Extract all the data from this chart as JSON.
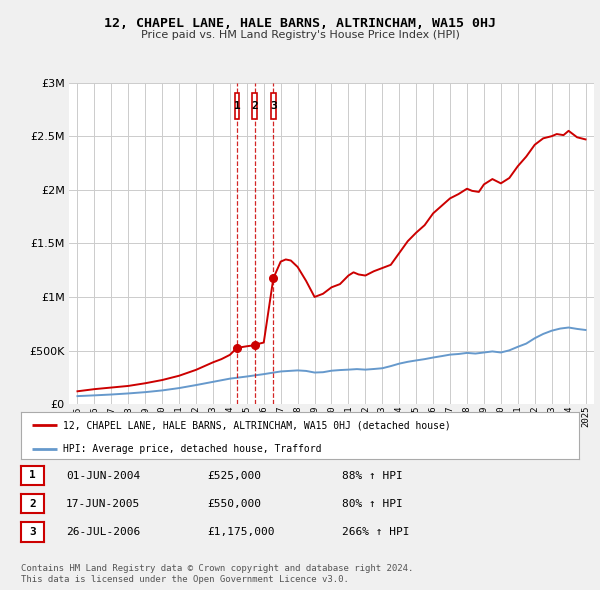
{
  "title": "12, CHAPEL LANE, HALE BARNS, ALTRINCHAM, WA15 0HJ",
  "subtitle": "Price paid vs. HM Land Registry's House Price Index (HPI)",
  "background_color": "#f0f0f0",
  "plot_bg_color": "#ffffff",
  "grid_color": "#cccccc",
  "ylim": [
    0,
    3000000
  ],
  "yticks": [
    0,
    500000,
    1000000,
    1500000,
    2000000,
    2500000,
    3000000
  ],
  "ytick_labels": [
    "£0",
    "£500K",
    "£1M",
    "£1.5M",
    "£2M",
    "£2.5M",
    "£3M"
  ],
  "xlim_start": 1994.5,
  "xlim_end": 2025.5,
  "xtick_years": [
    1995,
    1996,
    1997,
    1998,
    1999,
    2000,
    2001,
    2002,
    2003,
    2004,
    2005,
    2006,
    2007,
    2008,
    2009,
    2010,
    2011,
    2012,
    2013,
    2014,
    2015,
    2016,
    2017,
    2018,
    2019,
    2020,
    2021,
    2022,
    2023,
    2024,
    2025
  ],
  "sale_dates": [
    2004.417,
    2005.458,
    2006.567
  ],
  "sale_prices": [
    525000,
    550000,
    1175000
  ],
  "sale_labels": [
    "1",
    "2",
    "3"
  ],
  "line_color_red": "#cc0000",
  "line_color_blue": "#6699cc",
  "marker_color": "#cc0000",
  "dashed_line_color": "#cc0000",
  "transaction_label_bg": "#ffffff",
  "transaction_label_border": "#cc0000",
  "legend_entries": [
    "12, CHAPEL LANE, HALE BARNS, ALTRINCHAM, WA15 0HJ (detached house)",
    "HPI: Average price, detached house, Trafford"
  ],
  "table_rows": [
    {
      "num": "1",
      "date": "01-JUN-2004",
      "price": "£525,000",
      "pct": "88% ↑ HPI"
    },
    {
      "num": "2",
      "date": "17-JUN-2005",
      "price": "£550,000",
      "pct": "80% ↑ HPI"
    },
    {
      "num": "3",
      "date": "26-JUL-2006",
      "price": "£1,175,000",
      "pct": "266% ↑ HPI"
    }
  ],
  "footnote1": "Contains HM Land Registry data © Crown copyright and database right 2024.",
  "footnote2": "This data is licensed under the Open Government Licence v3.0.",
  "red_line_x": [
    1995.0,
    1996.0,
    1997.0,
    1998.0,
    1999.0,
    2000.0,
    2001.0,
    2002.0,
    2003.0,
    2003.5,
    2004.0,
    2004.417,
    2005.0,
    2005.458,
    2005.5,
    2006.0,
    2006.567,
    2007.0,
    2007.3,
    2007.6,
    2008.0,
    2008.5,
    2009.0,
    2009.5,
    2010.0,
    2010.5,
    2011.0,
    2011.3,
    2011.6,
    2012.0,
    2012.5,
    2013.0,
    2013.5,
    2014.0,
    2014.5,
    2015.0,
    2015.5,
    2016.0,
    2016.5,
    2017.0,
    2017.5,
    2018.0,
    2018.3,
    2018.7,
    2019.0,
    2019.5,
    2020.0,
    2020.5,
    2021.0,
    2021.5,
    2022.0,
    2022.5,
    2023.0,
    2023.3,
    2023.7,
    2024.0,
    2024.5,
    2025.0
  ],
  "red_line_y": [
    120000,
    140000,
    155000,
    170000,
    195000,
    225000,
    265000,
    320000,
    390000,
    420000,
    460000,
    525000,
    540000,
    550000,
    555000,
    575000,
    1175000,
    1330000,
    1350000,
    1340000,
    1280000,
    1150000,
    1000000,
    1030000,
    1090000,
    1120000,
    1200000,
    1230000,
    1210000,
    1200000,
    1240000,
    1270000,
    1300000,
    1410000,
    1520000,
    1600000,
    1670000,
    1780000,
    1850000,
    1920000,
    1960000,
    2010000,
    1990000,
    1980000,
    2050000,
    2100000,
    2060000,
    2110000,
    2220000,
    2310000,
    2420000,
    2480000,
    2500000,
    2520000,
    2510000,
    2550000,
    2490000,
    2470000
  ],
  "blue_line_x": [
    1995.0,
    1996.0,
    1997.0,
    1998.0,
    1999.0,
    2000.0,
    2001.0,
    2002.0,
    2003.0,
    2004.0,
    2005.0,
    2006.0,
    2007.0,
    2008.0,
    2008.5,
    2009.0,
    2009.5,
    2010.0,
    2010.5,
    2011.0,
    2011.5,
    2012.0,
    2012.5,
    2013.0,
    2013.5,
    2014.0,
    2014.5,
    2015.0,
    2015.5,
    2016.0,
    2016.5,
    2017.0,
    2017.5,
    2018.0,
    2018.5,
    2019.0,
    2019.5,
    2020.0,
    2020.5,
    2021.0,
    2021.5,
    2022.0,
    2022.5,
    2023.0,
    2023.5,
    2024.0,
    2024.5,
    2025.0
  ],
  "blue_line_y": [
    75000,
    82000,
    90000,
    100000,
    112000,
    128000,
    150000,
    178000,
    208000,
    238000,
    258000,
    280000,
    305000,
    315000,
    310000,
    295000,
    298000,
    312000,
    318000,
    322000,
    327000,
    322000,
    328000,
    335000,
    355000,
    378000,
    395000,
    408000,
    420000,
    435000,
    448000,
    462000,
    468000,
    478000,
    472000,
    482000,
    492000,
    482000,
    502000,
    535000,
    565000,
    615000,
    655000,
    685000,
    705000,
    715000,
    702000,
    692000
  ]
}
